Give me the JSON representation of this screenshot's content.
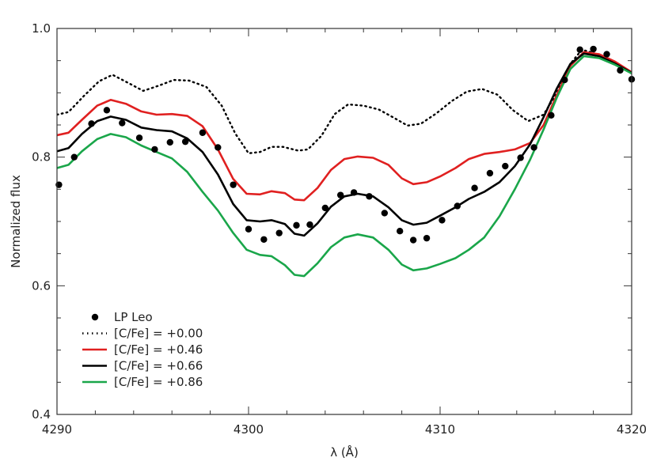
{
  "chart_data": {
    "type": "line",
    "title": "",
    "xlabel": "λ (Å)",
    "ylabel": "Normalized flux",
    "xlim": [
      4290,
      4320
    ],
    "ylim": [
      0.4,
      1.0
    ],
    "xticks": [
      {
        "value": 4290,
        "label": "4290"
      },
      {
        "value": 4300,
        "label": "4300"
      },
      {
        "value": 4310,
        "label": "4310"
      },
      {
        "value": 4320,
        "label": "4320"
      }
    ],
    "yticks": [
      {
        "value": 0.4,
        "label": "0.4"
      },
      {
        "value": 0.6,
        "label": "0.6"
      },
      {
        "value": 0.8,
        "label": "0.8"
      },
      {
        "value": 1.0,
        "label": "1.0"
      }
    ],
    "legend_position": "bottom-left",
    "grid": false,
    "observed": {
      "name": "LP Leo",
      "color": "#000000",
      "points": [
        [
          4290.1,
          0.757
        ],
        [
          4290.9,
          0.8
        ],
        [
          4291.8,
          0.852
        ],
        [
          4292.6,
          0.873
        ],
        [
          4293.4,
          0.853
        ],
        [
          4294.3,
          0.83
        ],
        [
          4295.1,
          0.812
        ],
        [
          4295.9,
          0.823
        ],
        [
          4296.7,
          0.824
        ],
        [
          4297.6,
          0.838
        ],
        [
          4298.4,
          0.815
        ],
        [
          4299.2,
          0.757
        ],
        [
          4300.0,
          0.688
        ],
        [
          4300.8,
          0.672
        ],
        [
          4301.6,
          0.682
        ],
        [
          4302.5,
          0.694
        ],
        [
          4303.2,
          0.695
        ],
        [
          4304.0,
          0.721
        ],
        [
          4304.8,
          0.741
        ],
        [
          4305.5,
          0.745
        ],
        [
          4306.3,
          0.739
        ],
        [
          4307.1,
          0.713
        ],
        [
          4307.9,
          0.685
        ],
        [
          4308.6,
          0.671
        ],
        [
          4309.3,
          0.674
        ],
        [
          4310.1,
          0.702
        ],
        [
          4310.9,
          0.724
        ],
        [
          4311.8,
          0.752
        ],
        [
          4312.6,
          0.775
        ],
        [
          4313.4,
          0.786
        ],
        [
          4314.2,
          0.799
        ],
        [
          4314.9,
          0.815
        ],
        [
          4315.8,
          0.865
        ],
        [
          4316.5,
          0.92
        ],
        [
          4317.3,
          0.967
        ],
        [
          4318.0,
          0.968
        ],
        [
          4318.7,
          0.96
        ],
        [
          4319.4,
          0.935
        ],
        [
          4320.0,
          0.921
        ]
      ]
    },
    "series": [
      {
        "name": "[C/Fe] = +0.00",
        "color": "#000000",
        "dash": "dotted",
        "points": [
          [
            4290.0,
            0.866
          ],
          [
            4290.6,
            0.87
          ],
          [
            4291.4,
            0.895
          ],
          [
            4292.2,
            0.918
          ],
          [
            4292.9,
            0.928
          ],
          [
            4293.8,
            0.914
          ],
          [
            4294.5,
            0.903
          ],
          [
            4295.3,
            0.911
          ],
          [
            4296.1,
            0.92
          ],
          [
            4296.9,
            0.919
          ],
          [
            4297.8,
            0.909
          ],
          [
            4298.6,
            0.88
          ],
          [
            4299.3,
            0.837
          ],
          [
            4300.0,
            0.806
          ],
          [
            4300.6,
            0.808
          ],
          [
            4301.2,
            0.816
          ],
          [
            4301.8,
            0.816
          ],
          [
            4302.6,
            0.81
          ],
          [
            4303.1,
            0.812
          ],
          [
            4303.8,
            0.833
          ],
          [
            4304.5,
            0.867
          ],
          [
            4305.2,
            0.882
          ],
          [
            4306.0,
            0.88
          ],
          [
            4306.8,
            0.874
          ],
          [
            4307.6,
            0.861
          ],
          [
            4308.3,
            0.849
          ],
          [
            4309.0,
            0.852
          ],
          [
            4309.8,
            0.868
          ],
          [
            4310.6,
            0.887
          ],
          [
            4311.4,
            0.902
          ],
          [
            4312.2,
            0.906
          ],
          [
            4313.0,
            0.897
          ],
          [
            4313.8,
            0.873
          ],
          [
            4314.6,
            0.856
          ],
          [
            4315.4,
            0.866
          ],
          [
            4316.1,
            0.9
          ],
          [
            4316.8,
            0.945
          ],
          [
            4317.4,
            0.967
          ],
          [
            4318.0,
            0.962
          ],
          [
            4318.8,
            0.951
          ],
          [
            4319.5,
            0.939
          ],
          [
            4320.0,
            0.932
          ]
        ]
      },
      {
        "name": "[C/Fe] = +0.46",
        "color": "#e02020",
        "dash": "solid",
        "points": [
          [
            4290.0,
            0.834
          ],
          [
            4290.6,
            0.838
          ],
          [
            4291.3,
            0.858
          ],
          [
            4292.1,
            0.88
          ],
          [
            4292.8,
            0.889
          ],
          [
            4293.6,
            0.883
          ],
          [
            4294.4,
            0.871
          ],
          [
            4295.2,
            0.866
          ],
          [
            4296.0,
            0.867
          ],
          [
            4296.8,
            0.864
          ],
          [
            4297.6,
            0.848
          ],
          [
            4298.4,
            0.812
          ],
          [
            4299.2,
            0.766
          ],
          [
            4299.9,
            0.743
          ],
          [
            4300.6,
            0.742
          ],
          [
            4301.2,
            0.747
          ],
          [
            4301.9,
            0.744
          ],
          [
            4302.4,
            0.734
          ],
          [
            4302.9,
            0.733
          ],
          [
            4303.6,
            0.752
          ],
          [
            4304.3,
            0.78
          ],
          [
            4305.0,
            0.797
          ],
          [
            4305.7,
            0.801
          ],
          [
            4306.5,
            0.799
          ],
          [
            4307.3,
            0.788
          ],
          [
            4308.0,
            0.767
          ],
          [
            4308.6,
            0.758
          ],
          [
            4309.3,
            0.761
          ],
          [
            4310.0,
            0.77
          ],
          [
            4310.8,
            0.783
          ],
          [
            4311.5,
            0.797
          ],
          [
            4312.3,
            0.805
          ],
          [
            4313.1,
            0.808
          ],
          [
            4313.9,
            0.812
          ],
          [
            4314.7,
            0.822
          ],
          [
            4315.4,
            0.85
          ],
          [
            4316.1,
            0.897
          ],
          [
            4316.8,
            0.942
          ],
          [
            4317.5,
            0.963
          ],
          [
            4318.3,
            0.96
          ],
          [
            4319.1,
            0.949
          ],
          [
            4320.0,
            0.932
          ]
        ]
      },
      {
        "name": "[C/Fe] = +0.66",
        "color": "#000000",
        "dash": "solid",
        "points": [
          [
            4290.0,
            0.809
          ],
          [
            4290.6,
            0.814
          ],
          [
            4291.3,
            0.836
          ],
          [
            4292.1,
            0.856
          ],
          [
            4292.8,
            0.863
          ],
          [
            4293.6,
            0.858
          ],
          [
            4294.4,
            0.846
          ],
          [
            4295.2,
            0.842
          ],
          [
            4296.0,
            0.84
          ],
          [
            4296.8,
            0.829
          ],
          [
            4297.6,
            0.808
          ],
          [
            4298.4,
            0.773
          ],
          [
            4299.2,
            0.727
          ],
          [
            4299.9,
            0.702
          ],
          [
            4300.6,
            0.7
          ],
          [
            4301.2,
            0.702
          ],
          [
            4301.9,
            0.696
          ],
          [
            4302.4,
            0.681
          ],
          [
            4302.9,
            0.678
          ],
          [
            4303.6,
            0.697
          ],
          [
            4304.3,
            0.723
          ],
          [
            4305.0,
            0.739
          ],
          [
            4305.7,
            0.743
          ],
          [
            4306.5,
            0.739
          ],
          [
            4307.3,
            0.722
          ],
          [
            4308.0,
            0.702
          ],
          [
            4308.6,
            0.695
          ],
          [
            4309.3,
            0.698
          ],
          [
            4310.0,
            0.709
          ],
          [
            4310.8,
            0.722
          ],
          [
            4311.5,
            0.735
          ],
          [
            4312.3,
            0.746
          ],
          [
            4313.1,
            0.761
          ],
          [
            4313.9,
            0.786
          ],
          [
            4314.7,
            0.82
          ],
          [
            4315.4,
            0.862
          ],
          [
            4316.1,
            0.907
          ],
          [
            4316.8,
            0.945
          ],
          [
            4317.5,
            0.961
          ],
          [
            4318.3,
            0.957
          ],
          [
            4319.1,
            0.946
          ],
          [
            4320.0,
            0.931
          ]
        ]
      },
      {
        "name": "[C/Fe] = +0.86",
        "color": "#1aa64a",
        "dash": "solid",
        "points": [
          [
            4290.0,
            0.783
          ],
          [
            4290.6,
            0.788
          ],
          [
            4291.3,
            0.809
          ],
          [
            4292.1,
            0.828
          ],
          [
            4292.8,
            0.836
          ],
          [
            4293.6,
            0.831
          ],
          [
            4294.4,
            0.818
          ],
          [
            4295.2,
            0.808
          ],
          [
            4296.0,
            0.798
          ],
          [
            4296.8,
            0.777
          ],
          [
            4297.6,
            0.746
          ],
          [
            4298.4,
            0.717
          ],
          [
            4299.2,
            0.682
          ],
          [
            4299.9,
            0.656
          ],
          [
            4300.6,
            0.648
          ],
          [
            4301.2,
            0.646
          ],
          [
            4301.9,
            0.632
          ],
          [
            4302.4,
            0.617
          ],
          [
            4302.9,
            0.615
          ],
          [
            4303.6,
            0.635
          ],
          [
            4304.3,
            0.66
          ],
          [
            4305.0,
            0.675
          ],
          [
            4305.7,
            0.68
          ],
          [
            4306.5,
            0.675
          ],
          [
            4307.3,
            0.656
          ],
          [
            4308.0,
            0.633
          ],
          [
            4308.6,
            0.624
          ],
          [
            4309.3,
            0.627
          ],
          [
            4310.0,
            0.634
          ],
          [
            4310.8,
            0.643
          ],
          [
            4311.5,
            0.656
          ],
          [
            4312.3,
            0.675
          ],
          [
            4313.1,
            0.708
          ],
          [
            4313.9,
            0.75
          ],
          [
            4314.7,
            0.796
          ],
          [
            4315.4,
            0.843
          ],
          [
            4316.1,
            0.893
          ],
          [
            4316.8,
            0.937
          ],
          [
            4317.5,
            0.957
          ],
          [
            4318.3,
            0.954
          ],
          [
            4319.1,
            0.944
          ],
          [
            4320.0,
            0.93
          ]
        ]
      }
    ]
  }
}
